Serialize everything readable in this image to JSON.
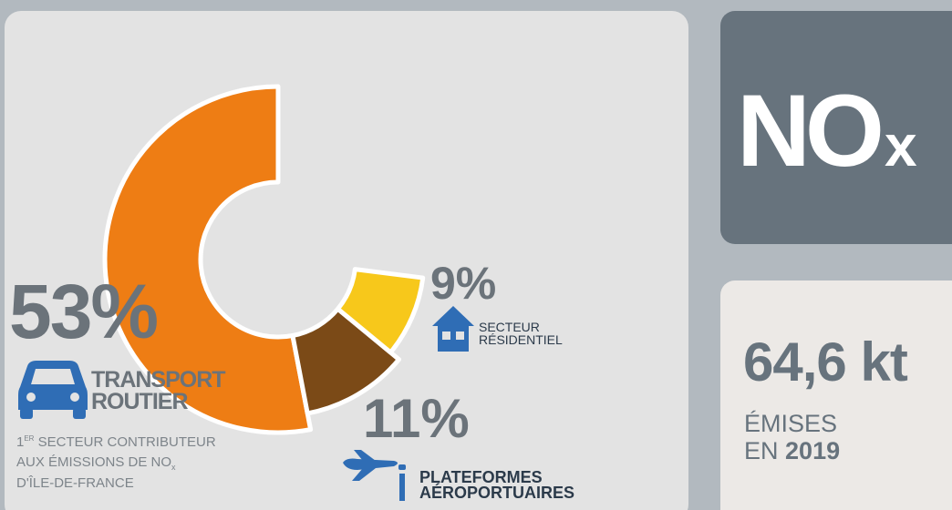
{
  "chart_data": {
    "type": "donut",
    "categories": [
      "TRANSPORT ROUTIER",
      "PLATEFORMES AÉROPORTUAIRES",
      "SECTEUR RÉSIDENTIEL"
    ],
    "values": [
      53,
      11,
      9
    ],
    "value_labels": [
      "53%",
      "11%",
      "9%"
    ],
    "colors": [
      "#ee7d14",
      "#7b4a17",
      "#f7c81b"
    ]
  },
  "pollutant": {
    "text": "NO",
    "subscript": "x"
  },
  "total": {
    "value": "64,6 kt",
    "line1": "ÉMISES",
    "line2": "EN",
    "year": "2019"
  },
  "note": {
    "rank": "1",
    "rank_suffix": "ER",
    "line1": "SECTEUR CONTRIBUTEUR",
    "line2": "AUX ÉMISSIONS DE NO",
    "line2_sub": "x",
    "line3": "D'ÎLE-DE-FRANCE"
  }
}
